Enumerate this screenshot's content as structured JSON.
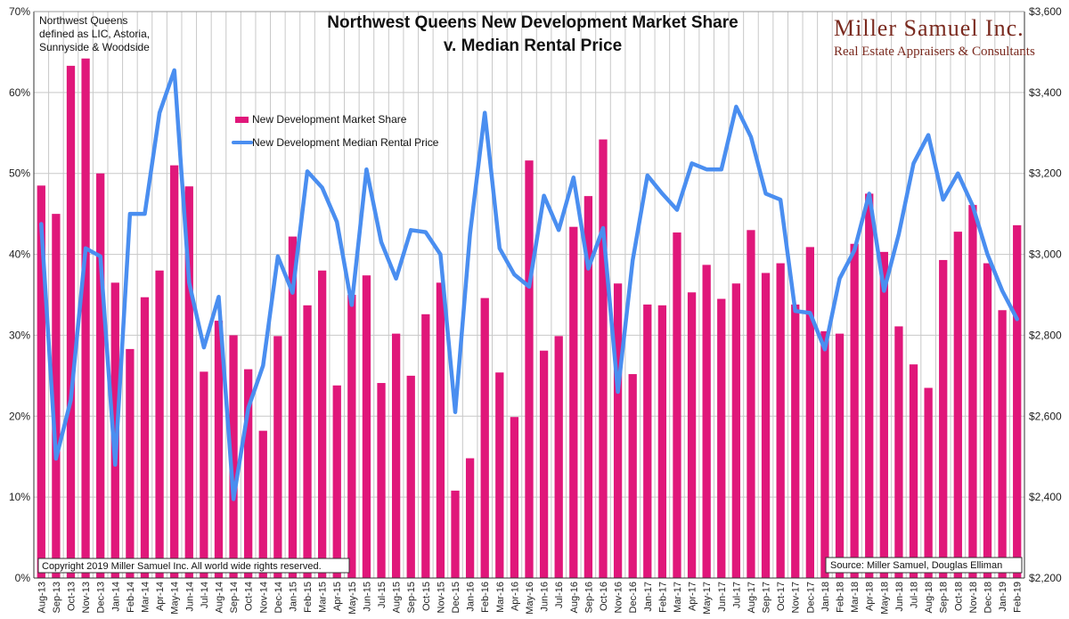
{
  "chart_data": {
    "type": "bar+line",
    "title_lines": [
      "Northwest Queens New Development Market Share",
      "v. Median Rental Price"
    ],
    "note_lines": [
      "Northwest Queens",
      "defined as LIC, Astoria,",
      "Sunnyside & Woodside"
    ],
    "brand": {
      "name": "Miller Samuel Inc.",
      "tagline": "Real Estate Appraisers & Consultants",
      "color": "#7a2a1f"
    },
    "copyright": "Copyright 2019 Miller Samuel Inc.  All world wide rights reserved.",
    "source": "Source: Miller Samuel, Douglas Elliman",
    "y_left": {
      "min": 0,
      "max": 70,
      "ticks": [
        "0%",
        "10%",
        "20%",
        "30%",
        "40%",
        "50%",
        "60%",
        "70%"
      ]
    },
    "y_right": {
      "min": 2200,
      "max": 3600,
      "ticks": [
        "$2,200",
        "$2,400",
        "$2,600",
        "$2,800",
        "$3,000",
        "$3,200",
        "$3,400",
        "$3,600"
      ]
    },
    "categories": [
      "Aug-13",
      "Sep-13",
      "Oct-13",
      "Nov-13",
      "Dec-13",
      "Jan-14",
      "Feb-14",
      "Mar-14",
      "Apr-14",
      "May-14",
      "Jun-14",
      "Jul-14",
      "Aug-14",
      "Sep-14",
      "Oct-14",
      "Nov-14",
      "Dec-14",
      "Jan-15",
      "Feb-15",
      "Mar-15",
      "Apr-15",
      "May-15",
      "Jun-15",
      "Jul-15",
      "Aug-15",
      "Sep-15",
      "Oct-15",
      "Nov-15",
      "Dec-15",
      "Jan-16",
      "Feb-16",
      "Mar-16",
      "Apr-16",
      "May-16",
      "Jun-16",
      "Jul-16",
      "Aug-16",
      "Sep-16",
      "Oct-16",
      "Nov-16",
      "Dec-16",
      "Jan-17",
      "Feb-17",
      "Mar-17",
      "Apr-17",
      "May-17",
      "Jun-17",
      "Jul-17",
      "Aug-17",
      "Sep-17",
      "Oct-17",
      "Nov-17",
      "Dec-17",
      "Jan-18",
      "Feb-18",
      "Mar-18",
      "Apr-18",
      "May-18",
      "Jun-18",
      "Jul-18",
      "Aug-18",
      "Sep-18",
      "Oct-18",
      "Nov-18",
      "Dec-18",
      "Jan-19",
      "Feb-19"
    ],
    "series": [
      {
        "name": "New Development Market Share",
        "kind": "bar",
        "axis": "left",
        "color": "#e0177a",
        "values": [
          48.5,
          45.0,
          63.3,
          64.2,
          50.0,
          36.5,
          28.3,
          34.7,
          38.0,
          51.0,
          48.4,
          25.5,
          31.8,
          30.0,
          25.8,
          18.2,
          29.9,
          42.2,
          33.7,
          38.0,
          23.8,
          35.0,
          37.4,
          24.1,
          30.2,
          25.0,
          32.6,
          36.5,
          10.8,
          14.8,
          34.6,
          25.4,
          19.9,
          51.6,
          28.1,
          29.9,
          43.4,
          47.2,
          54.2,
          36.4,
          25.2,
          33.8,
          33.7,
          42.7,
          35.3,
          38.7,
          34.5,
          36.4,
          43.0,
          37.7,
          38.9,
          33.8,
          40.9,
          30.5,
          30.2,
          41.3,
          47.5,
          40.3,
          31.1,
          26.4,
          23.5,
          39.3,
          42.8,
          46.1,
          38.9,
          33.1,
          43.6
        ]
      },
      {
        "name": "New Development Median Rental Price",
        "kind": "line",
        "axis": "right",
        "color": "#4a8ef0",
        "values": [
          3075,
          2495,
          2640,
          3015,
          2995,
          2480,
          3100,
          3100,
          3350,
          3455,
          2930,
          2770,
          2895,
          2395,
          2620,
          2725,
          2995,
          2905,
          3205,
          3165,
          3080,
          2875,
          3210,
          3030,
          2940,
          3060,
          3055,
          3000,
          2610,
          3050,
          3350,
          3015,
          2950,
          2920,
          3145,
          3060,
          3190,
          2965,
          3065,
          2660,
          2985,
          3195,
          3150,
          3110,
          3225,
          3210,
          3210,
          3365,
          3290,
          3150,
          3135,
          2860,
          2855,
          2765,
          2940,
          3010,
          3150,
          2910,
          3050,
          3225,
          3295,
          3135,
          3200,
          3120,
          3000,
          2910,
          2840
        ]
      }
    ],
    "legend_placement": "upper-left inside plot",
    "grid": {
      "vertical": true,
      "horizontal": true
    }
  }
}
